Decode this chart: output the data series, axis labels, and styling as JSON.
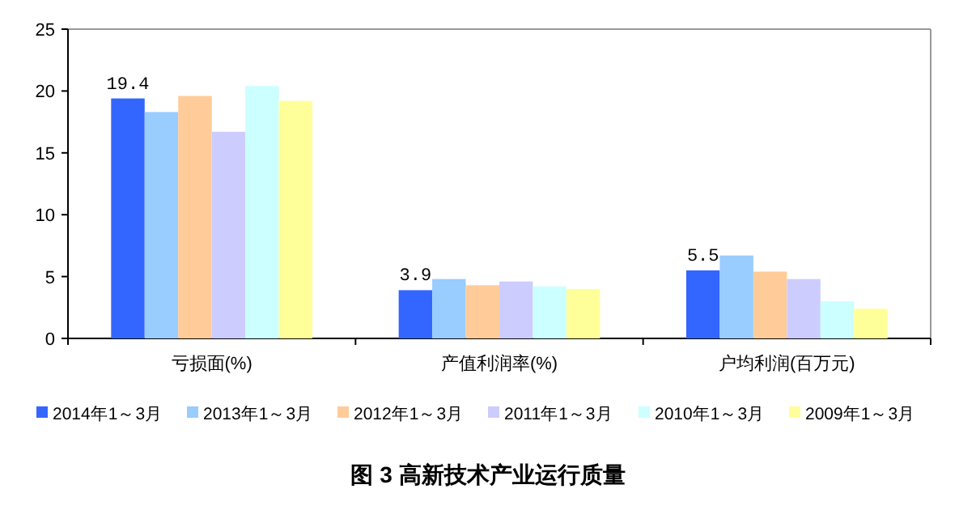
{
  "chart_data": {
    "type": "bar",
    "title": "图 3  高新技术产业运行质量",
    "categories": [
      "亏损面(%)",
      "产值利润率(%)",
      "户均利润(百万元)"
    ],
    "series": [
      {
        "name": "2014年1～3月",
        "color": "#3366ff",
        "values": [
          19.4,
          3.9,
          5.5
        ],
        "value_labels": [
          "19.4",
          "3.9",
          "5.5"
        ]
      },
      {
        "name": "2013年1～3月",
        "color": "#99ccff",
        "values": [
          18.3,
          4.8,
          6.7
        ]
      },
      {
        "name": "2012年1～3月",
        "color": "#ffcc99",
        "values": [
          19.6,
          4.3,
          5.4
        ]
      },
      {
        "name": "2011年1～3月",
        "color": "#ccccff",
        "values": [
          16.7,
          4.6,
          4.8
        ]
      },
      {
        "name": "2010年1～3月",
        "color": "#ccffff",
        "values": [
          20.4,
          4.2,
          3.0
        ]
      },
      {
        "name": "2009年1～3月",
        "color": "#ffff99",
        "values": [
          19.2,
          4.0,
          2.4
        ]
      }
    ],
    "ylim": [
      0,
      25
    ],
    "yticks": [
      0,
      5,
      10,
      15,
      20,
      25
    ],
    "grid": false,
    "legend": "bottom"
  }
}
